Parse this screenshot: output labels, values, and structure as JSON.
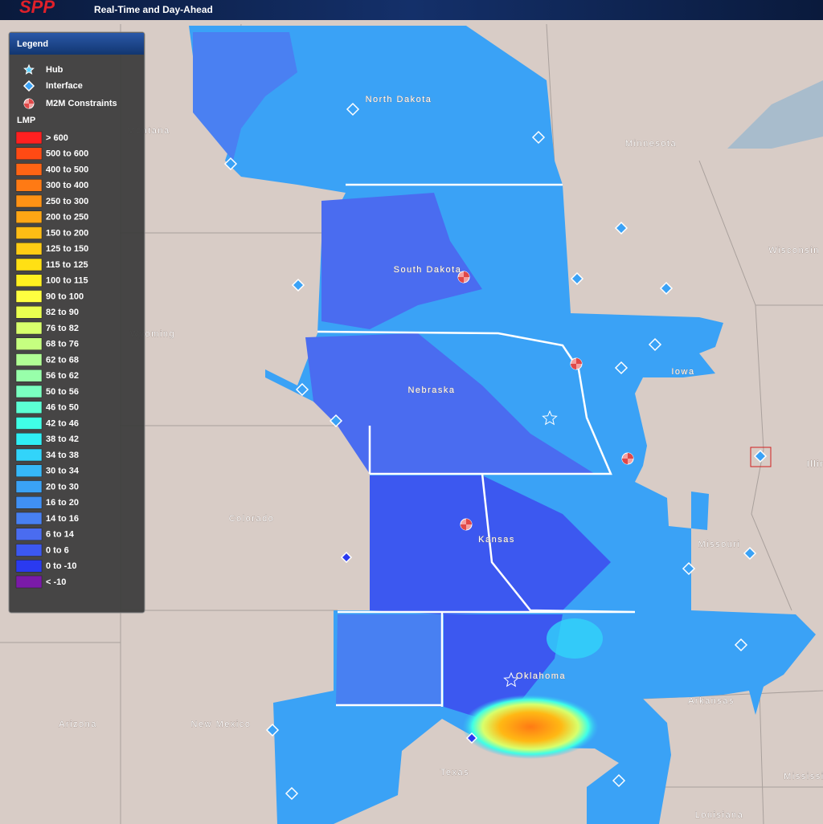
{
  "header": {
    "logo": "SPP",
    "subtitle": "Real-Time and Day-Ahead"
  },
  "legend": {
    "title": "Legend",
    "symbols": [
      {
        "label": "Hub"
      },
      {
        "label": "Interface"
      },
      {
        "label": "M2M Constraints"
      }
    ],
    "lmp_title": "LMP",
    "lmp_ranges": [
      {
        "label": "> 600",
        "color": "#ff2020"
      },
      {
        "label": "500 to 600",
        "color": "#ff4a14"
      },
      {
        "label": "400 to 500",
        "color": "#ff6414"
      },
      {
        "label": "300 to 400",
        "color": "#ff7a14"
      },
      {
        "label": "250 to 300",
        "color": "#ff9214"
      },
      {
        "label": "200 to 250",
        "color": "#ffa614"
      },
      {
        "label": "150 to 200",
        "color": "#ffbc14"
      },
      {
        "label": "125 to 150",
        "color": "#ffcc14"
      },
      {
        "label": "115 to 125",
        "color": "#ffe014"
      },
      {
        "label": "100 to 115",
        "color": "#fff020"
      },
      {
        "label": "90 to 100",
        "color": "#ffff40"
      },
      {
        "label": "82 to 90",
        "color": "#eaff50"
      },
      {
        "label": "76 to 82",
        "color": "#d8ff6c"
      },
      {
        "label": "68 to 76",
        "color": "#c6ff80"
      },
      {
        "label": "62 to 68",
        "color": "#b0ff94"
      },
      {
        "label": "56 to 62",
        "color": "#98ffaa"
      },
      {
        "label": "50 to 56",
        "color": "#7affc0"
      },
      {
        "label": "46 to 50",
        "color": "#5cffd4"
      },
      {
        "label": "42 to 46",
        "color": "#40ffe6"
      },
      {
        "label": "38 to 42",
        "color": "#30eef4"
      },
      {
        "label": "34 to 38",
        "color": "#32d4fa"
      },
      {
        "label": "30 to 34",
        "color": "#36b8f8"
      },
      {
        "label": "20 to 30",
        "color": "#3aa2f6"
      },
      {
        "label": "16 to 20",
        "color": "#4090f4"
      },
      {
        "label": "14 to 16",
        "color": "#4880f2"
      },
      {
        "label": "6 to 14",
        "color": "#4a6cf0"
      },
      {
        "label": "0 to 6",
        "color": "#3c58f0"
      },
      {
        "label": "0 to -10",
        "color": "#2a3af0"
      },
      {
        "label": "< -10",
        "color": "#7a1aa8"
      }
    ]
  },
  "map": {
    "labels": [
      "North Dakota",
      "Montana",
      "Minnesota",
      "South Dakota",
      "Wisconsin",
      "Wyoming",
      "Nebraska",
      "Iowa",
      "Illinois",
      "Colorado",
      "Kansas",
      "Missouri",
      "Oklahoma",
      "Arkansas",
      "Arizona",
      "New Mexico",
      "Texas",
      "Mississippi",
      "Louisiana"
    ]
  }
}
